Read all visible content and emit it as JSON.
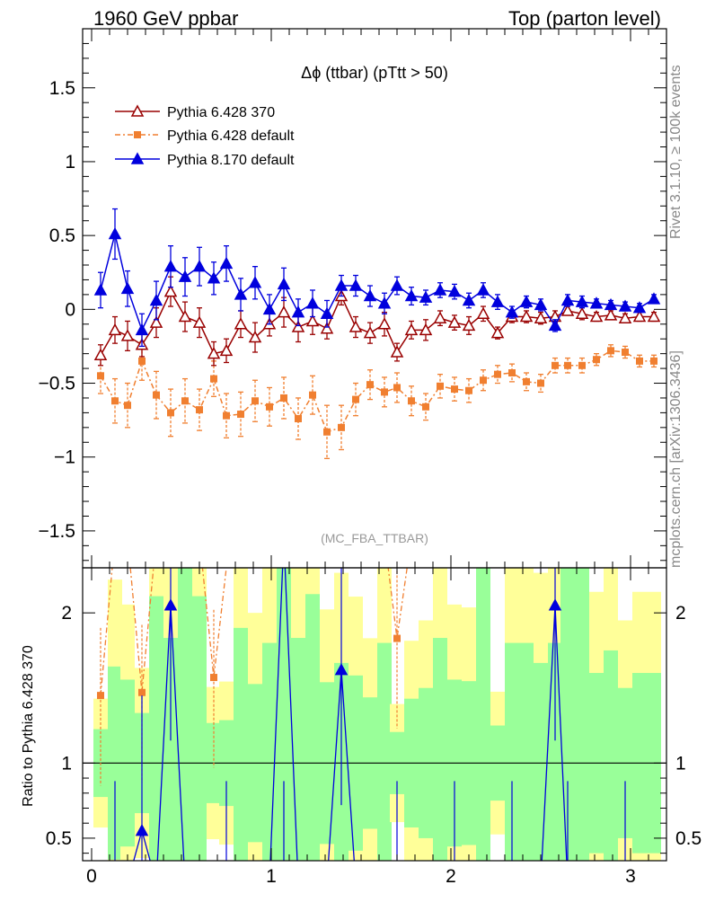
{
  "header": {
    "left": "1960 GeV ppbar",
    "right": "Top (parton level)"
  },
  "side_labels": {
    "rivet": "Rivet 3.1.10, ≥ 100k events",
    "mcplots": "mcplots.cern.ch [arXiv:1306.3436]"
  },
  "chart_data": [
    {
      "type": "line",
      "title": "Δϕ (ttbar) (pTtt > 50)",
      "watermark": "(MC_FBA_TTBAR)",
      "xlim": [
        -0.05,
        3.2
      ],
      "ylim": [
        -1.75,
        1.9
      ],
      "yticks": [
        "1.5",
        "1",
        "0.5",
        "0",
        "−0.5",
        "−1",
        "−1.5"
      ],
      "ytick_values": [
        1.5,
        1,
        0.5,
        0,
        -0.5,
        -1,
        -1.5
      ],
      "legend_position": "top-left",
      "x": [
        0.05,
        0.13,
        0.2,
        0.28,
        0.36,
        0.44,
        0.52,
        0.6,
        0.68,
        0.75,
        0.83,
        0.91,
        0.99,
        1.07,
        1.15,
        1.23,
        1.31,
        1.39,
        1.47,
        1.55,
        1.63,
        1.7,
        1.78,
        1.86,
        1.94,
        2.02,
        2.1,
        2.18,
        2.26,
        2.34,
        2.42,
        2.5,
        2.58,
        2.65,
        2.73,
        2.81,
        2.89,
        2.97,
        3.05,
        3.13
      ],
      "series": [
        {
          "name": "Pythia 6.428 370",
          "color": "#990000",
          "marker": "open-triangle",
          "values": [
            -0.31,
            -0.14,
            -0.18,
            -0.24,
            -0.09,
            0.12,
            -0.05,
            -0.09,
            -0.3,
            -0.28,
            -0.1,
            -0.19,
            -0.1,
            -0.02,
            -0.12,
            -0.08,
            -0.13,
            0.09,
            -0.12,
            -0.16,
            -0.1,
            -0.29,
            -0.14,
            -0.14,
            -0.06,
            -0.09,
            -0.11,
            -0.03,
            -0.16,
            -0.05,
            -0.05,
            -0.06,
            -0.05,
            -0.01,
            -0.03,
            -0.05,
            -0.04,
            -0.06,
            -0.05,
            -0.05
          ],
          "errors": [
            0.07,
            0.09,
            0.1,
            0.08,
            0.1,
            0.1,
            0.1,
            0.1,
            0.08,
            0.08,
            0.09,
            0.1,
            0.08,
            0.1,
            0.1,
            0.09,
            0.07,
            0.06,
            0.07,
            0.07,
            0.08,
            0.06,
            0.06,
            0.07,
            0.05,
            0.05,
            0.06,
            0.05,
            0.04,
            0.04,
            0.04,
            0.04,
            0.04,
            0.03,
            0.04,
            0.03,
            0.03,
            0.03,
            0.03,
            0.03
          ]
        },
        {
          "name": "Pythia 6.428 default",
          "color": "#f07f30",
          "marker": "filled-square",
          "values": [
            -0.45,
            -0.62,
            -0.65,
            -0.35,
            -0.58,
            -0.7,
            -0.62,
            -0.68,
            -0.47,
            -0.72,
            -0.71,
            -0.62,
            -0.66,
            -0.6,
            -0.74,
            -0.58,
            -0.83,
            -0.8,
            -0.61,
            -0.51,
            -0.56,
            -0.53,
            -0.62,
            -0.66,
            -0.52,
            -0.54,
            -0.55,
            -0.48,
            -0.44,
            -0.43,
            -0.49,
            -0.5,
            -0.38,
            -0.38,
            -0.38,
            -0.34,
            -0.28,
            -0.29,
            -0.35,
            -0.35
          ],
          "errors": [
            0.12,
            0.15,
            0.15,
            0.13,
            0.16,
            0.16,
            0.15,
            0.14,
            0.12,
            0.15,
            0.15,
            0.14,
            0.13,
            0.14,
            0.14,
            0.13,
            0.18,
            0.15,
            0.11,
            0.1,
            0.1,
            0.1,
            0.1,
            0.09,
            0.08,
            0.08,
            0.08,
            0.07,
            0.06,
            0.06,
            0.06,
            0.06,
            0.05,
            0.05,
            0.05,
            0.04,
            0.04,
            0.04,
            0.04,
            0.04
          ]
        },
        {
          "name": "Pythia 8.170 default",
          "color": "#0000dd",
          "marker": "filled-triangle",
          "values": [
            0.13,
            0.51,
            0.14,
            -0.14,
            0.06,
            0.29,
            0.22,
            0.29,
            0.21,
            0.31,
            0.1,
            0.18,
            0.0,
            0.17,
            -0.02,
            0.04,
            -0.03,
            0.16,
            0.16,
            0.09,
            0.04,
            0.16,
            0.09,
            0.08,
            0.13,
            0.12,
            0.06,
            0.13,
            0.05,
            -0.02,
            0.05,
            0.03,
            -0.11,
            0.06,
            0.05,
            0.04,
            0.03,
            0.02,
            0.01,
            0.07
          ],
          "errors": [
            0.12,
            0.17,
            0.12,
            0.11,
            0.13,
            0.14,
            0.13,
            0.13,
            0.11,
            0.12,
            0.11,
            0.11,
            0.1,
            0.11,
            0.09,
            0.09,
            0.09,
            0.07,
            0.07,
            0.07,
            0.07,
            0.06,
            0.06,
            0.05,
            0.05,
            0.05,
            0.05,
            0.05,
            0.05,
            0.04,
            0.04,
            0.04,
            0.04,
            0.04,
            0.04,
            0.03,
            0.03,
            0.03,
            0.03,
            0.03
          ]
        }
      ]
    },
    {
      "type": "line",
      "ylabel": "Ratio to Pythia 6.428 370",
      "reference": 1,
      "xlim": [
        -0.05,
        3.2
      ],
      "ylim": [
        0.35,
        2.3
      ],
      "yticks": [
        "0.5",
        "1",
        "2"
      ],
      "ytick_values": [
        0.5,
        1,
        2
      ],
      "xticks": [
        "0",
        "1",
        "2",
        "3"
      ],
      "xtick_values": [
        0,
        1,
        2,
        3
      ],
      "band_colors": {
        "inner": "#99ff99",
        "outer": "#ffff99"
      },
      "ratio_default_6428": [
        1.45,
        2.5,
        2.5,
        1.47,
        2.5,
        2.5,
        2.5,
        2.5,
        1.57,
        2.3,
        2.5,
        2.5,
        2.5,
        2.5,
        2.5,
        2.5,
        2.5,
        2.5,
        2.5,
        2.5,
        2.5,
        1.83,
        2.5,
        2.5,
        2.5,
        2.5,
        2.5,
        2.5,
        2.5,
        2.5,
        2.5,
        2.5,
        2.5,
        2.5,
        2.5,
        2.5,
        2.5,
        2.5,
        2.5,
        2.5
      ],
      "ratio_8170": [
        0.2,
        0.2,
        0.2,
        0.55,
        0.2,
        2.05,
        0.2,
        0.2,
        0.2,
        0.2,
        0.2,
        0.2,
        0.2,
        2.5,
        0.2,
        0.2,
        0.2,
        1.62,
        0.2,
        0.2,
        0.2,
        0.2,
        0.2,
        0.2,
        0.2,
        0.2,
        0.2,
        0.2,
        0.2,
        0.2,
        0.2,
        0.2,
        2.05,
        0.2,
        0.2,
        0.2,
        0.2,
        0.2,
        0.2,
        0.2
      ]
    }
  ]
}
